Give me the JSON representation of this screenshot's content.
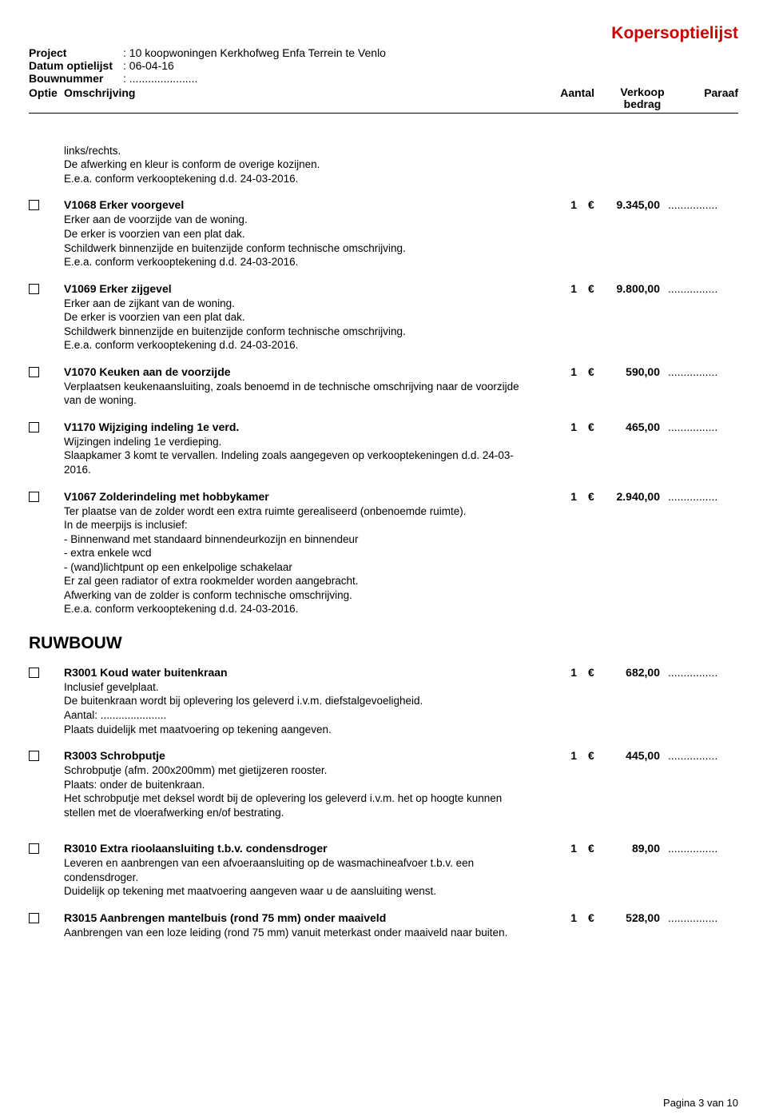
{
  "header": {
    "title": "Kopersoptielijst",
    "project_label": "Project",
    "project_value": ": 10 koopwoningen Kerkhofweg Enfa Terrein te Venlo",
    "datum_label": "Datum optielijst",
    "datum_value": ": 06-04-16",
    "bouwnr_label": "Bouwnummer",
    "bouwnr_value": ": ......................",
    "col_optie": "Optie",
    "col_omsch": "Omschrijving",
    "col_aantal": "Aantal",
    "col_verkoop_top": "Verkoop",
    "col_verkoop_bot": "bedrag",
    "col_paraaf": "Paraaf"
  },
  "intro_desc": "links/rechts.\nDe afwerking en kleur is conform de overige kozijnen.\nE.e.a. conform verkooptekening d.d. 24-03-2016.",
  "items": [
    {
      "title": "V1068 Erker voorgevel",
      "aantal": "1",
      "euro": "€",
      "price": "9.345,00",
      "paraaf": "................",
      "desc": "Erker aan de voorzijde van de woning.\nDe erker is voorzien van een plat dak.\nSchildwerk binnenzijde en buitenzijde conform technische omschrijving.\nE.e.a. conform verkooptekening d.d. 24-03-2016."
    },
    {
      "title": "V1069 Erker zijgevel",
      "aantal": "1",
      "euro": "€",
      "price": "9.800,00",
      "paraaf": "................",
      "desc": "Erker aan de zijkant van de woning.\nDe erker is voorzien van een plat dak.\nSchildwerk binnenzijde en buitenzijde conform technische omschrijving.\nE.e.a. conform verkooptekening d.d. 24-03-2016."
    },
    {
      "title": "V1070 Keuken aan de voorzijde",
      "aantal": "1",
      "euro": "€",
      "price": "590,00",
      "paraaf": "................",
      "desc": "Verplaatsen keukenaansluiting, zoals benoemd in de technische omschrijving naar de voorzijde van de woning."
    },
    {
      "title": "V1170 Wijziging indeling 1e verd.",
      "aantal": "1",
      "euro": "€",
      "price": "465,00",
      "paraaf": "................",
      "desc": "Wijzingen indeling 1e verdieping.\nSlaapkamer 3 komt te vervallen. Indeling zoals aangegeven op verkooptekeningen d.d. 24-03-2016."
    },
    {
      "title": "V1067 Zolderindeling met hobbykamer",
      "aantal": "1",
      "euro": "€",
      "price": "2.940,00",
      "paraaf": "................",
      "desc": "Ter plaatse van de zolder wordt een extra ruimte gerealiseerd (onbenoemde ruimte).\nIn de meerpijs is inclusief:\n- Binnenwand met standaard binnendeurkozijn en binnendeur\n- extra enkele wcd\n- (wand)lichtpunt op een enkelpolige schakelaar\nEr zal geen radiator of extra rookmelder worden aangebracht.\nAfwerking van de zolder is conform technische omschrijving.\nE.e.a. conform verkooptekening d.d. 24-03-2016."
    }
  ],
  "section": "RUWBOUW",
  "items2": [
    {
      "title": "R3001 Koud water buitenkraan",
      "aantal": "1",
      "euro": "€",
      "price": "682,00",
      "paraaf": "................",
      "desc": "Inclusief gevelplaat.\nDe buitenkraan wordt bij oplevering los geleverd i.v.m. diefstalgevoeligheid.\nAantal: ......................\nPlaats duidelijk met maatvoering op tekening aangeven."
    },
    {
      "title": "R3003 Schrobputje",
      "aantal": "1",
      "euro": "€",
      "price": "445,00",
      "paraaf": "................",
      "desc": "Schrobputje (afm. 200x200mm) met gietijzeren rooster.\nPlaats: onder de buitenkraan.\nHet schrobputje met deksel wordt bij de oplevering los geleverd i.v.m. het op hoogte kunnen stellen met de vloerafwerking en/of bestrating."
    },
    {
      "title": "R3010 Extra rioolaansluiting t.b.v. condensdroger",
      "aantal": "1",
      "euro": "€",
      "price": "89,00",
      "paraaf": "................",
      "desc": "Leveren en aanbrengen van een afvoeraansluiting op de wasmachineafvoer t.b.v. een condensdroger.\nDuidelijk op tekening met maatvoering aangeven waar u de aansluiting wenst."
    },
    {
      "title": "R3015 Aanbrengen mantelbuis (rond 75 mm) onder maaiveld",
      "aantal": "1",
      "euro": "€",
      "price": "528,00",
      "paraaf": "................",
      "desc": "Aanbrengen van een loze leiding (rond 75 mm) vanuit meterkast onder maaiveld naar buiten."
    }
  ],
  "footer": "Pagina 3 van 10"
}
